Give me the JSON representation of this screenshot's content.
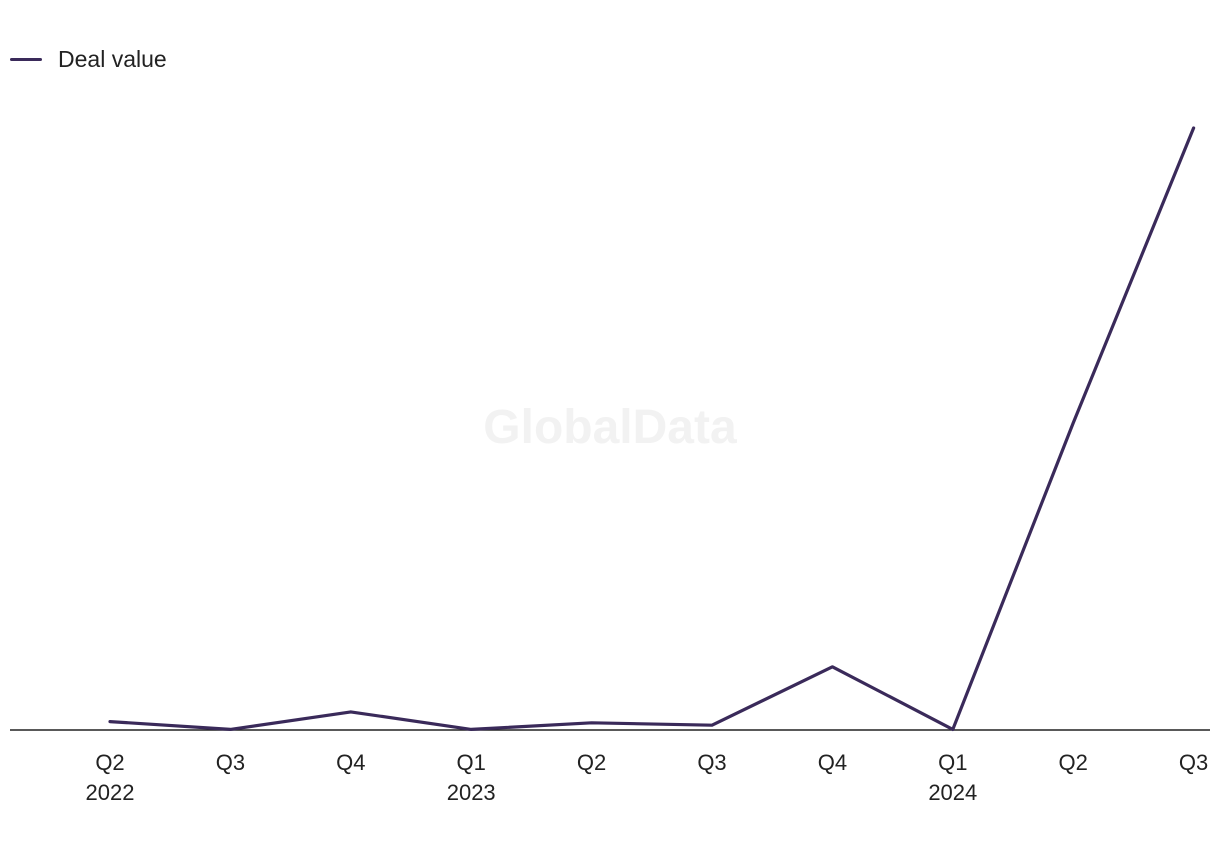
{
  "chart_data": {
    "type": "line",
    "title": "",
    "xlabel": "",
    "ylabel": "",
    "watermark": "GlobalData",
    "legend_position": "top-left",
    "grid": false,
    "categories": [
      {
        "quarter": "Q2",
        "year": "2022"
      },
      {
        "quarter": "Q3",
        "year": ""
      },
      {
        "quarter": "Q4",
        "year": ""
      },
      {
        "quarter": "Q1",
        "year": "2023"
      },
      {
        "quarter": "Q2",
        "year": ""
      },
      {
        "quarter": "Q3",
        "year": ""
      },
      {
        "quarter": "Q4",
        "year": ""
      },
      {
        "quarter": "Q1",
        "year": "2024"
      },
      {
        "quarter": "Q2",
        "year": ""
      },
      {
        "quarter": "Q3",
        "year": ""
      }
    ],
    "ylim": [
      0,
      100
    ],
    "series": [
      {
        "name": "Deal value",
        "color": "#3a2a5a",
        "values": [
          1.4,
          0.1,
          3.0,
          0.1,
          1.2,
          0.8,
          10.5,
          0.1,
          51.0,
          100.0
        ]
      }
    ]
  },
  "legend": {
    "label": "Deal value"
  },
  "colors": {
    "series": "#3a2a5a",
    "axis": "#222222",
    "watermark": "#f2f2f2"
  }
}
